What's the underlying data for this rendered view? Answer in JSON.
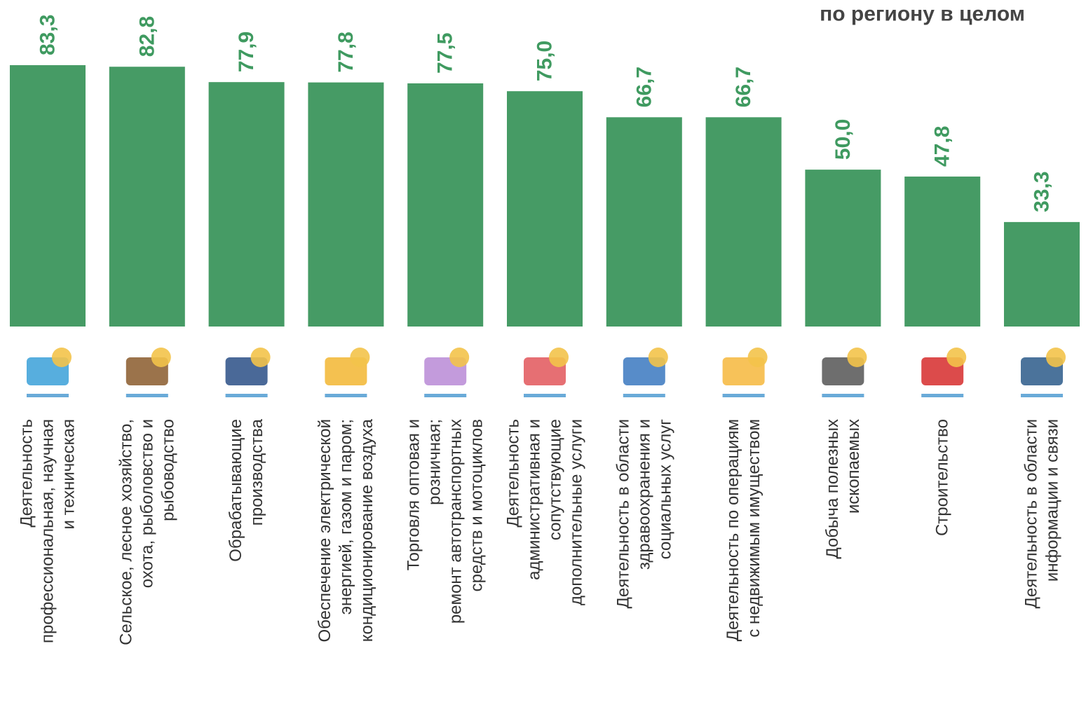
{
  "chart_data": {
    "type": "bar",
    "title": "по региону в целом",
    "color": "#469b65",
    "categories": [
      [
        "Деятельность",
        "профессиональная, научная",
        "и техническая"
      ],
      [
        "Сельское, лесное хозяйство,",
        "охота, рыболовство и",
        "рыбоводство"
      ],
      [
        "Обрабатывающие",
        "производства"
      ],
      [
        "Обеспечение электрической",
        "энергией, газом и паром;",
        "кондиционирование воздуха"
      ],
      [
        "Торговля оптовая и",
        "розничная;",
        "ремонт автотранспортных",
        "средств и мотоциклов"
      ],
      [
        "Деятельность",
        "административная и",
        "сопутствующие",
        "дополнительные услуги"
      ],
      [
        "Деятельность в области",
        "здравоохранения и",
        "социальных услуг"
      ],
      [
        "Деятельность по операциям",
        "с недвижимым имуществом"
      ],
      [
        "Добыча полезных",
        "ископаемых"
      ],
      [
        "Строительство"
      ],
      [
        "Деятельность в области",
        "информации и связи"
      ]
    ],
    "values": [
      83.3,
      82.8,
      77.9,
      77.8,
      77.5,
      75.0,
      66.7,
      66.7,
      50.0,
      47.8,
      33.3
    ],
    "value_labels": [
      "83,3",
      "82,8",
      "77,9",
      "77,8",
      "77,5",
      "75,0",
      "66,7",
      "66,7",
      "50,0",
      "47,8",
      "33,3"
    ]
  }
}
